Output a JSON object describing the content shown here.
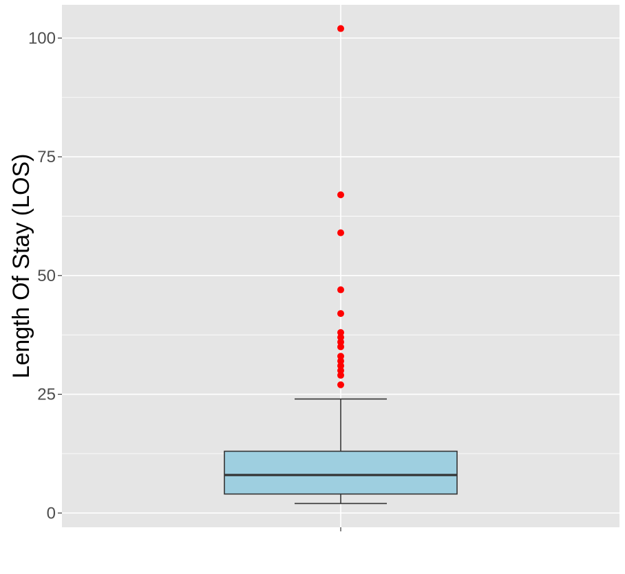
{
  "chart_data": {
    "type": "box",
    "title": "",
    "xlabel": "",
    "ylabel": "Length Of Stay (LOS)",
    "ylim": [
      -3,
      107
    ],
    "y_ticks": [
      0,
      25,
      50,
      75,
      100
    ],
    "y_tick_labels": [
      "0",
      "25",
      "50",
      "75",
      "100"
    ],
    "grid": true,
    "legend": "none",
    "box": {
      "whisker_low": 2,
      "q1": 4,
      "median": 8,
      "q3": 13,
      "whisker_high": 24
    },
    "outliers": [
      27,
      29,
      30,
      31,
      32,
      33,
      35,
      36,
      37,
      38,
      42,
      47,
      59,
      67,
      102
    ],
    "colors": {
      "panel": "#e5e5e5",
      "grid": "#ffffff",
      "box_fill": "#9ecfe0",
      "box_line": "#333333",
      "outlier": "#ff0000",
      "tick_text": "#4d4d4d"
    }
  }
}
